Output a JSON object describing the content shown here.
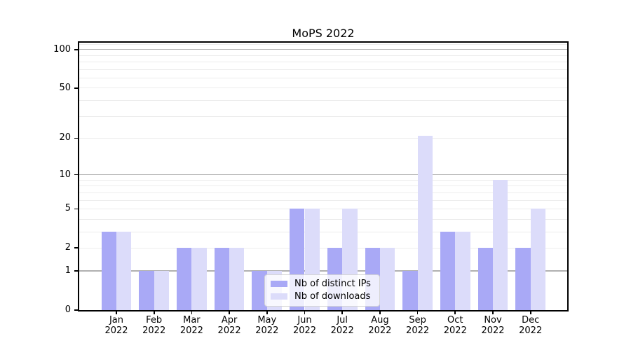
{
  "chart_data": {
    "type": "bar",
    "title": "MoPS 2022",
    "categories": [
      "Jan 2022",
      "Feb 2022",
      "Mar 2022",
      "Apr 2022",
      "May 2022",
      "Jun 2022",
      "Jul 2022",
      "Aug 2022",
      "Sep 2022",
      "Oct 2022",
      "Nov 2022",
      "Dec 2022"
    ],
    "x_tick_month": [
      "Jan",
      "Feb",
      "Mar",
      "Apr",
      "May",
      "Jun",
      "Jul",
      "Aug",
      "Sep",
      "Oct",
      "Nov",
      "Dec"
    ],
    "x_tick_year": "2022",
    "series": [
      {
        "name": "Nb of distinct IPs",
        "color": "#a9a9f6",
        "values": [
          3,
          1,
          2,
          2,
          1,
          5,
          2,
          2,
          1,
          3,
          2,
          2
        ]
      },
      {
        "name": "Nb of downloads",
        "color": "#dcdcfa",
        "values": [
          3,
          1,
          2,
          2,
          1,
          5,
          5,
          2,
          21,
          3,
          9,
          5
        ]
      }
    ],
    "yscale": "log1p",
    "ylim": [
      0,
      113
    ],
    "y_ticks": [
      0,
      1,
      2,
      5,
      10,
      20,
      50,
      100
    ],
    "major_gridlines": [
      1,
      10,
      100
    ],
    "minor_gridlines": [
      2,
      3,
      4,
      5,
      6,
      7,
      8,
      9,
      20,
      30,
      40,
      50,
      60,
      70,
      80,
      90,
      110
    ],
    "grid": true,
    "legend_position": "lower center"
  }
}
